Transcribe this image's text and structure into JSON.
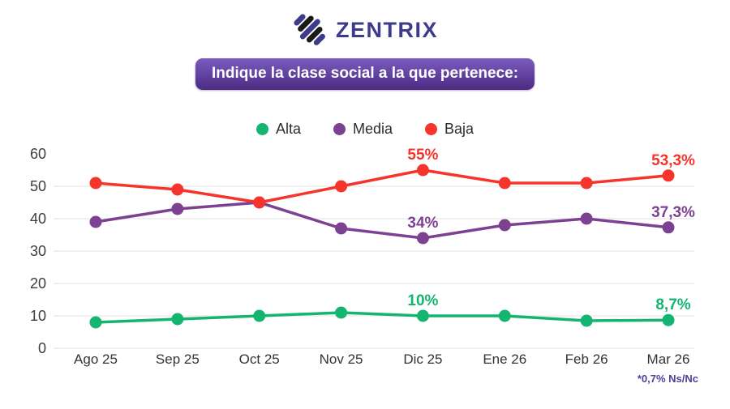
{
  "logo": {
    "text": "ZENTRIX",
    "brand_color": "#3e3a8c",
    "icon_dark_color": "#1a1a1a"
  },
  "title_banner": {
    "text": "Indique la clase social a la que pertenece:",
    "bg_gradient_top": "#7a5cc0",
    "bg_gradient_bottom": "#4c2b82"
  },
  "footnote": {
    "text": "*0,7% Ns/Nc",
    "color": "#4a4199"
  },
  "chart_data": {
    "type": "line",
    "title": "Indique la clase social a la que pertenece:",
    "categories": [
      "Ago 25",
      "Sep 25",
      "Oct 25",
      "Nov 25",
      "Dic 25",
      "Ene 26",
      "Feb 26",
      "Mar 26"
    ],
    "series": [
      {
        "name": "Alta",
        "color": "#14b571",
        "values": [
          8,
          9,
          10,
          11,
          10,
          10,
          8.5,
          8.7
        ]
      },
      {
        "name": "Media",
        "color": "#7d4191",
        "values": [
          39,
          43,
          45,
          37,
          34,
          38,
          40,
          37.3
        ]
      },
      {
        "name": "Baja",
        "color": "#f5352c",
        "values": [
          51,
          49,
          45,
          50,
          55,
          51,
          51,
          53.3
        ]
      }
    ],
    "ylim": [
      0,
      60
    ],
    "yticks": [
      0,
      10,
      20,
      30,
      40,
      50,
      60
    ],
    "grid": true,
    "legend_position": "top",
    "annotations": [
      {
        "series": "Baja",
        "index": 4,
        "label": "55%"
      },
      {
        "series": "Baja",
        "index": 7,
        "label": "53,3%"
      },
      {
        "series": "Media",
        "index": 4,
        "label": "34%"
      },
      {
        "series": "Media",
        "index": 7,
        "label": "37,3%"
      },
      {
        "series": "Alta",
        "index": 4,
        "label": "10%"
      },
      {
        "series": "Alta",
        "index": 7,
        "label": "8,7%"
      }
    ]
  }
}
